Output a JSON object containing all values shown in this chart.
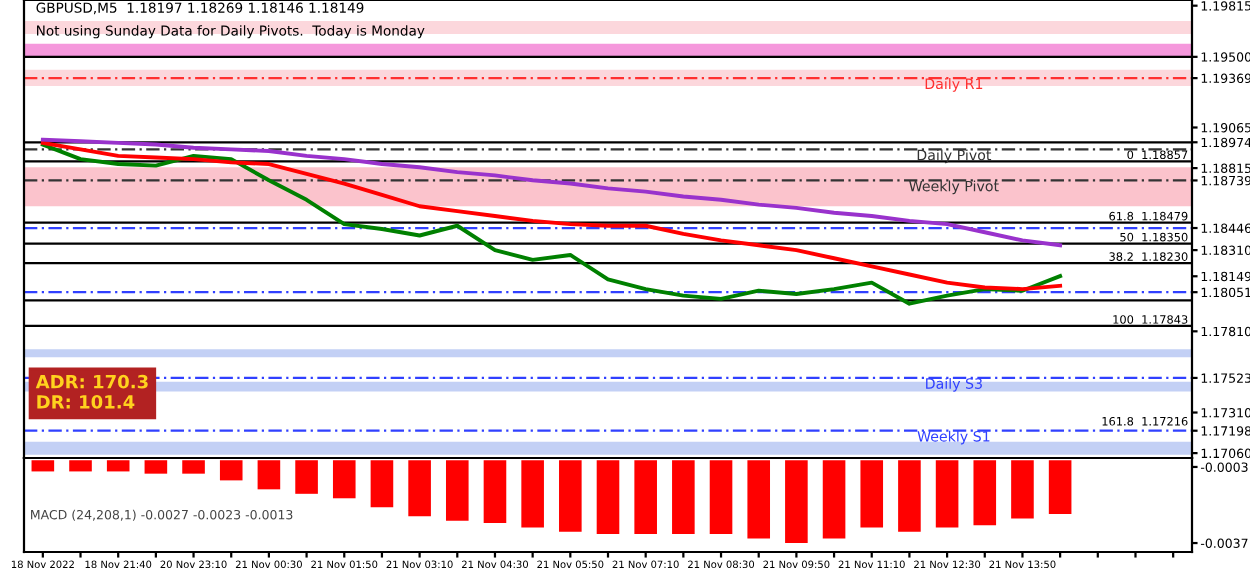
{
  "chart_data": [
    {
      "type": "line",
      "title": "GBPUSD,M5  1.18197 1.18269 1.18146 1.18149",
      "subtitle": "Not using Sunday Data for Daily Pivots.  Today is Monday",
      "categories": [
        null,
        null,
        null,
        null,
        null,
        null,
        null,
        null,
        null,
        null,
        null,
        null,
        null,
        null,
        null,
        null,
        null,
        null,
        null,
        null,
        null,
        null,
        null,
        null,
        null,
        null,
        null,
        null,
        null,
        null,
        null
      ],
      "series": [
        {
          "color": "#008000",
          "values": [
            1.1896,
            1.1887,
            1.1884,
            1.1883,
            1.1889,
            1.1887,
            1.1874,
            1.1862,
            1.1847,
            1.1844,
            1.184,
            1.1846,
            1.1831,
            1.1825,
            1.1828,
            1.1813,
            1.1807,
            1.1803,
            1.1801,
            1.1806,
            1.1804,
            1.1807,
            1.1811,
            1.1798,
            1.1803,
            1.1807,
            1.1806,
            1.1815,
            null,
            null,
            null
          ]
        },
        {
          "color": "#ff0000",
          "values": [
            1.1897,
            1.1893,
            1.1889,
            1.1888,
            1.1887,
            1.1885,
            1.1884,
            1.1878,
            1.1872,
            1.1865,
            1.1858,
            1.1855,
            1.1852,
            1.1849,
            1.1847,
            1.1846,
            1.1846,
            1.1841,
            1.1837,
            1.1834,
            1.1831,
            1.1826,
            1.1821,
            1.1816,
            1.1811,
            1.1808,
            1.1807,
            1.1809,
            null,
            null,
            null
          ]
        },
        {
          "color": "#9932cc",
          "values": [
            1.1899,
            1.1898,
            1.1897,
            1.1896,
            1.1894,
            1.1893,
            1.1892,
            1.1889,
            1.1887,
            1.1884,
            1.1882,
            1.1879,
            1.1877,
            1.1874,
            1.1872,
            1.1869,
            1.1867,
            1.1864,
            1.1862,
            1.1859,
            1.1857,
            1.1854,
            1.1852,
            1.1849,
            1.1847,
            1.1842,
            1.1837,
            1.1834,
            null,
            null,
            null
          ]
        }
      ],
      "ylim": [
        1.1703,
        1.1985
      ],
      "yticks": [
        {
          "value": 1.19815,
          "label": "1.19815"
        },
        {
          "value": 1.195,
          "label": "1.19500"
        },
        {
          "value": 1.19369,
          "label": "1.19369"
        },
        {
          "value": 1.19065,
          "label": "1.19065"
        },
        {
          "value": 1.18974,
          "label": "1.18974"
        },
        {
          "value": 1.18815,
          "label": "1.18815"
        },
        {
          "value": 1.18739,
          "label": "1.18739"
        },
        {
          "value": 1.18446,
          "label": "1.18446"
        },
        {
          "value": 1.1831,
          "label": "1.18310"
        },
        {
          "value": 1.18149,
          "label": "1.18149"
        },
        {
          "value": 1.18051,
          "label": "1.18051"
        },
        {
          "value": 1.1781,
          "label": "1.17810"
        },
        {
          "value": 1.17523,
          "label": "1.17523"
        },
        {
          "value": 1.1731,
          "label": "1.17310"
        },
        {
          "value": 1.17198,
          "label": "1.17198"
        },
        {
          "value": 1.1706,
          "label": "1.17060"
        }
      ],
      "tick_labels": "y",
      "grid": false,
      "ref_lines": [
        {
          "axis": "y",
          "value": 1.195,
          "color": "#000000",
          "line_style": "solid"
        },
        {
          "axis": "y",
          "value": 1.19369,
          "label": "Daily R1",
          "color": "#ff3030",
          "line_style": "dashed"
        },
        {
          "axis": "y",
          "value": 1.18974,
          "color": "#000000",
          "line_style": "solid"
        },
        {
          "axis": "y",
          "value": 1.1893,
          "label": "Daily Pivot",
          "color": "#333333",
          "line_style": "dashed"
        },
        {
          "axis": "y",
          "value": 1.18857,
          "label": "0  1.18857",
          "color": "#000000",
          "line_style": "solid"
        },
        {
          "axis": "y",
          "value": 1.18739,
          "label": "Weekly Pivot",
          "color": "#333333",
          "line_style": "dashed"
        },
        {
          "axis": "y",
          "value": 1.18479,
          "label": "61.8  1.18479",
          "color": "#000000",
          "line_style": "solid"
        },
        {
          "axis": "y",
          "value": 1.18446,
          "color": "#3040ff",
          "line_style": "dashed"
        },
        {
          "axis": "y",
          "value": 1.1835,
          "label": "50  1.18350",
          "color": "#000000",
          "line_style": "solid"
        },
        {
          "axis": "y",
          "value": 1.1823,
          "label": "38.2  1.18230",
          "color": "#000000",
          "line_style": "solid"
        },
        {
          "axis": "y",
          "value": 1.18051,
          "color": "#3040ff",
          "line_style": "dashed"
        },
        {
          "axis": "y",
          "value": 1.18,
          "color": "#000000",
          "line_style": "solid"
        },
        {
          "axis": "y",
          "value": 1.17843,
          "label": "100  1.17843",
          "color": "#000000",
          "line_style": "solid"
        },
        {
          "axis": "y",
          "value": 1.17523,
          "label": "Daily S3",
          "color": "#3040ff",
          "line_style": "dashed"
        },
        {
          "axis": "y",
          "value": 1.17198,
          "label": "Weekly S1",
          "color": "#3040ff",
          "line_style": "dashed"
        }
      ],
      "bands": [
        {
          "axis": "y",
          "from": 1.1964,
          "to": 1.1972,
          "color": "#fcd7dc"
        },
        {
          "axis": "y",
          "from": 1.195,
          "to": 1.1958,
          "color": "#f598dc"
        },
        {
          "axis": "y",
          "from": 1.1932,
          "to": 1.1942,
          "color": "#fcd7dc"
        },
        {
          "axis": "y",
          "from": 1.1858,
          "to": 1.1882,
          "color": "#fbc3cc"
        },
        {
          "axis": "y",
          "from": 1.1765,
          "to": 1.177,
          "color": "#c3d0f5"
        },
        {
          "axis": "y",
          "from": 1.1744,
          "to": 1.175,
          "color": "#c3d0f5"
        },
        {
          "axis": "y",
          "from": 1.1705,
          "to": 1.1713,
          "color": "#c3d0f5"
        }
      ],
      "annotations": [
        "ADR: 170.3",
        "DR: 101.4",
        {
          "text": "161.8  1.17216",
          "y": 1.17216
        }
      ]
    },
    {
      "type": "bar",
      "categories": [
        "18 Nov 2022",
        null,
        "18 Nov 21:40",
        null,
        "20 Nov 23:10",
        null,
        "21 Nov 00:30",
        null,
        "21 Nov 01:50",
        null,
        "21 Nov 03:10",
        null,
        "21 Nov 04:30",
        null,
        "21 Nov 05:50",
        null,
        "21 Nov 07:10",
        null,
        "21 Nov 08:30",
        null,
        "21 Nov 09:50",
        null,
        "21 Nov 11:10",
        null,
        "21 Nov 12:30",
        null,
        "21 Nov 13:50",
        null,
        null,
        null,
        null
      ],
      "values": [
        -0.0005,
        -0.0005,
        -0.0005,
        -0.0006,
        -0.0006,
        -0.0009,
        -0.0013,
        -0.0015,
        -0.0017,
        -0.0021,
        -0.0025,
        -0.0027,
        -0.0028,
        -0.003,
        -0.0032,
        -0.0033,
        -0.0033,
        -0.0033,
        -0.0033,
        -0.0035,
        -0.0037,
        -0.0035,
        -0.003,
        -0.0032,
        -0.003,
        -0.0029,
        -0.0026,
        -0.0024,
        null,
        null,
        null
      ],
      "color": "#ff0000",
      "ylim": [
        -0.0041,
        0.0001
      ],
      "yticks": [
        -0.0003,
        -0.0037
      ],
      "grid": false,
      "annotations": [
        "MACD (24,208,1) -0.0027 -0.0023 -0.0013"
      ]
    }
  ]
}
